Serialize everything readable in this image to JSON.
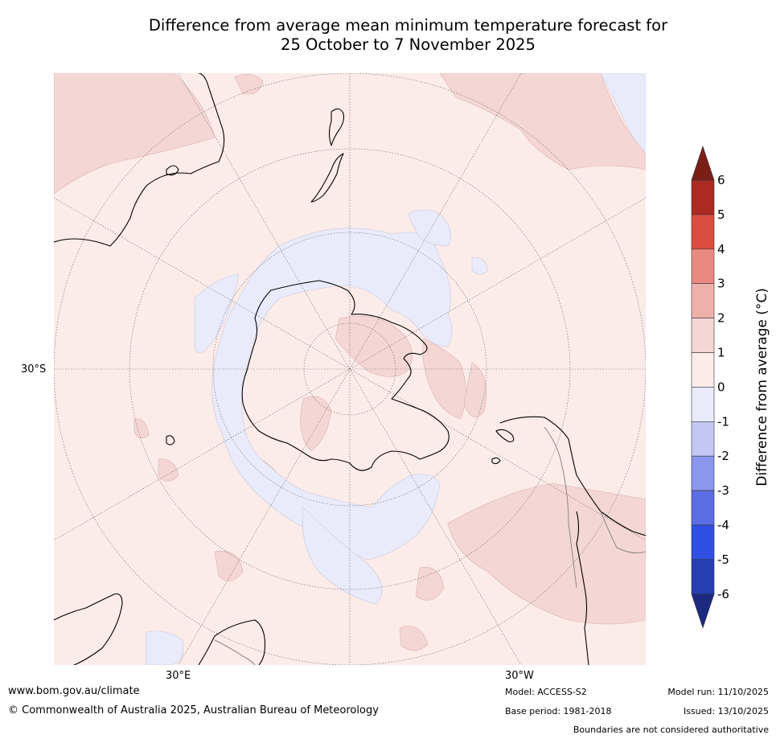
{
  "title": {
    "line1": "Difference from average mean minimum temperature forecast for",
    "line2": "25 October to 7 November 2025"
  },
  "map": {
    "projection": "south polar stereographic",
    "lat_label": "30°S",
    "lon_labels": {
      "east": "30°E",
      "west": "30°W"
    }
  },
  "legend": {
    "label": "Difference from average (°C)",
    "ticks": [
      "6",
      "5",
      "4",
      "3",
      "2",
      "1",
      "0",
      "-1",
      "-2",
      "-3",
      "-4",
      "-5",
      "-6"
    ],
    "colors": {
      "over": "#7a1f16",
      "c5_6": "#ab2a22",
      "c4_5": "#db4d40",
      "c3_4": "#e98a80",
      "c2_3": "#eeb1a9",
      "c1_2": "#f4d6d4",
      "c0_1": "#fbebe9",
      "cm1_0": "#e9ebfb",
      "cm2_m1": "#c3c8f3",
      "cm3_m2": "#8b97ec",
      "cm4_m3": "#5b6ee4",
      "cm5_m4": "#2f4fe1",
      "cm6_m5": "#253eb2",
      "under": "#1b2a80"
    }
  },
  "footer": {
    "website": "www.bom.gov.au/climate",
    "copyright": "© Commonwealth of Australia 2025, Australian Bureau of Meteorology",
    "model": "Model: ACCESS-S2",
    "base_period": "Base period: 1981-2018",
    "model_run": "Model run: 11/10/2025",
    "issued": "Issued: 13/10/2025",
    "disclaimer": "Boundaries are not considered authoritative"
  }
}
